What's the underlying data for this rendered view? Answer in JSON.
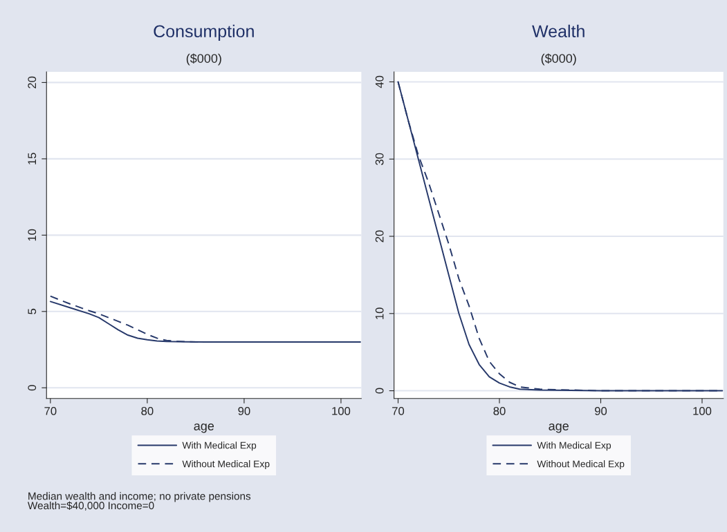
{
  "chart_data": [
    {
      "type": "line",
      "title": "Consumption",
      "subtitle": "($000)",
      "xlabel": "age",
      "xlim": [
        69.6,
        102.1
      ],
      "ylim": [
        -0.7,
        20.7
      ],
      "xticks": [
        70,
        80,
        90,
        100
      ],
      "yticks": [
        0,
        5,
        10,
        15,
        20
      ],
      "grid": "y",
      "legend": "bottom",
      "annotations": [
        "Median wealth and income; no private pensions\nWealth=$40,000 Income=0"
      ],
      "series": [
        {
          "name": "With Medical Exp",
          "color": "#26386a",
          "line_style": "solid",
          "x": [
            70,
            72,
            74,
            75,
            76,
            77,
            78,
            79,
            80,
            81,
            82,
            84,
            86,
            90,
            95,
            100,
            102
          ],
          "values": [
            5.65,
            5.25,
            4.85,
            4.6,
            4.2,
            3.8,
            3.45,
            3.25,
            3.15,
            3.07,
            3.03,
            3.01,
            3.0,
            3.0,
            3.0,
            3.0,
            3.0
          ]
        },
        {
          "name": "Without Medical Exp",
          "color": "#26386a",
          "line_style": "dashed",
          "x": [
            70,
            72,
            74,
            75,
            76,
            77,
            78,
            79,
            80,
            81,
            82,
            83,
            85,
            90,
            95,
            100,
            102
          ],
          "values": [
            6.0,
            5.5,
            5.05,
            4.85,
            4.6,
            4.35,
            4.1,
            3.8,
            3.5,
            3.25,
            3.1,
            3.05,
            3.0,
            3.0,
            3.0,
            3.0,
            3.0
          ]
        }
      ]
    },
    {
      "type": "line",
      "title": "Wealth",
      "subtitle": "($000)",
      "xlabel": "age",
      "xlim": [
        69.6,
        102.1
      ],
      "ylim": [
        -1.0,
        41.3
      ],
      "xticks": [
        70,
        80,
        90,
        100
      ],
      "yticks": [
        0,
        10,
        20,
        30,
        40
      ],
      "grid": "y",
      "legend": "bottom",
      "series": [
        {
          "name": "With Medical Exp",
          "color": "#26386a",
          "line_style": "solid",
          "x": [
            70,
            71,
            72,
            73,
            74,
            75,
            76,
            77,
            78,
            79,
            80,
            81,
            82,
            84,
            90,
            95,
            102
          ],
          "values": [
            40,
            35,
            30,
            25,
            20,
            15,
            10,
            6,
            3.4,
            1.8,
            1.0,
            0.5,
            0.2,
            0.1,
            0.0,
            0.0,
            0.0
          ]
        },
        {
          "name": "Without Medical Exp",
          "color": "#26386a",
          "line_style": "dashed",
          "x": [
            70,
            71,
            72,
            73,
            74,
            75,
            76,
            77,
            78,
            79,
            80,
            81,
            82,
            84,
            90,
            95,
            102
          ],
          "values": [
            40,
            35,
            30.5,
            27,
            23,
            19,
            14.5,
            11,
            6.8,
            3.8,
            2.2,
            1.1,
            0.5,
            0.2,
            0.0,
            0.0,
            0.0
          ]
        }
      ]
    }
  ]
}
